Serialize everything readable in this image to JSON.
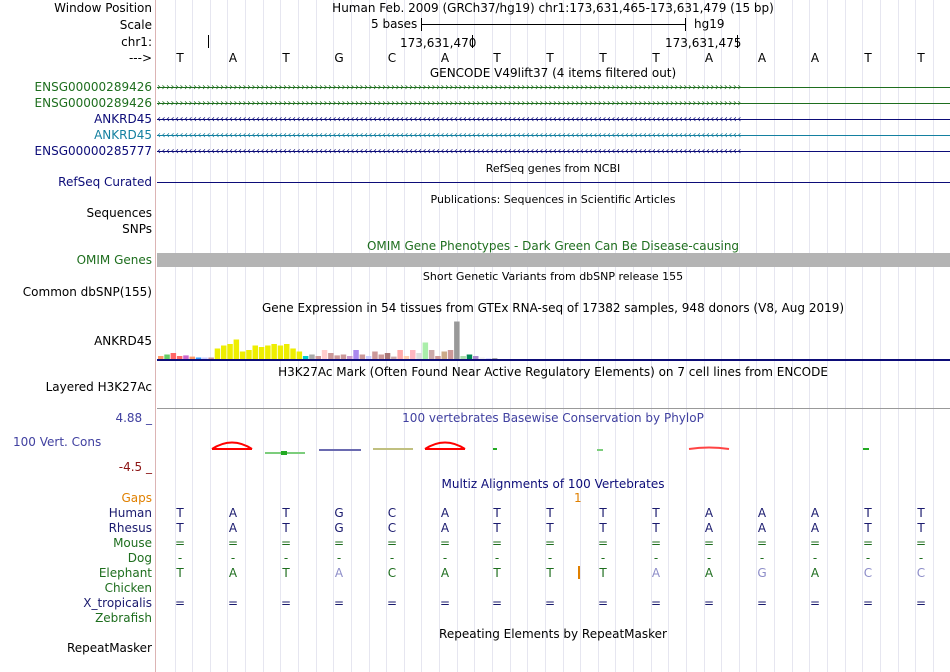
{
  "header": {
    "window_label": "Window Position",
    "window_text": "Human Feb. 2009 (GRCh37/hg19)   chr1:173,631,465-173,631,479 (15 bp)",
    "scale_label": "Scale",
    "scale_text": "5 bases",
    "assembly": "hg19",
    "chrom_label": "chr1:",
    "pos1": "173,631,470",
    "pos2": "173,631,475",
    "strand_label": "--->"
  },
  "sequence": [
    "T",
    "A",
    "T",
    "G",
    "C",
    "A",
    "T",
    "T",
    "T",
    "T",
    "A",
    "A",
    "A",
    "T",
    "T"
  ],
  "gencode": {
    "title": "GENCODE V49lift37 (4 items filtered out)",
    "tracks": [
      {
        "name": "ENSG00000289426",
        "color": "#1e6e1e",
        "arrow": "›"
      },
      {
        "name": "ENSG00000289426",
        "color": "#1e6e1e",
        "arrow": "›"
      },
      {
        "name": "ANKRD45",
        "color": "#0c0c78",
        "arrow": "‹"
      },
      {
        "name": "ANKRD45",
        "color": "#1480a0",
        "arrow": "‹"
      },
      {
        "name": "ENSG00000285777",
        "color": "#0c0c78",
        "arrow": "‹"
      }
    ]
  },
  "refseq": {
    "title": "RefSeq genes from NCBI",
    "label": "RefSeq Curated"
  },
  "publications": {
    "title": "Publications: Sequences in Scientific Articles",
    "label1": "Sequences",
    "label2": "SNPs"
  },
  "omim": {
    "title": "OMIM Gene Phenotypes - Dark Green Can Be Disease-causing",
    "label": "OMIM Genes"
  },
  "dbsnp": {
    "title": "Short Genetic Variants from dbSNP release 155",
    "label": "Common dbSNP(155)"
  },
  "gtex": {
    "title": "Gene Expression in 54 tissues from GTEx RNA-seq of 17382 samples, 948 donors (V8, Aug 2019)",
    "label": "ANKRD45",
    "values": [
      0.1,
      0.15,
      0.2,
      0.1,
      0.12,
      0.08,
      0.05,
      0.05,
      0.05,
      0.35,
      0.45,
      0.5,
      0.65,
      0.25,
      0.3,
      0.45,
      0.4,
      0.45,
      0.5,
      0.45,
      0.5,
      0.35,
      0.25,
      0.1,
      0.15,
      0.1,
      0.3,
      0.2,
      0.12,
      0.15,
      0.1,
      0.3,
      0.15,
      0.1,
      0.25,
      0.15,
      0.2,
      0.08,
      0.3,
      0.1,
      0.3,
      0.2,
      0.55,
      0.3,
      0.1,
      0.25,
      0.3,
      1.25,
      0.1,
      0.15,
      0.1,
      0.05,
      0.03,
      0.03
    ],
    "colors": [
      "#ff9966",
      "#66cc66",
      "#ff6666",
      "#ff6666",
      "#cc66cc",
      "#ff9966",
      "#3399ff",
      "#ccccff",
      "#cc9999",
      "#eeee00",
      "#eeee00",
      "#eeee00",
      "#eeee00",
      "#eeee00",
      "#eeee00",
      "#eeee00",
      "#eeee00",
      "#eeee00",
      "#eeee00",
      "#eeee00",
      "#eeee00",
      "#eeee00",
      "#eeee00",
      "#00cccc",
      "#aaaaaa",
      "#cc9999",
      "#ffcccc",
      "#cc9999",
      "#cc9999",
      "#cc9999",
      "#cc99cc",
      "#aa88ee",
      "#cc9999",
      "#ccccff",
      "#cc9999",
      "#cc9999",
      "#aa7777",
      "#ccaaaa",
      "#ffaaaa",
      "#ffccaa",
      "#ffb6c1",
      "#dddddd",
      "#aaeeaa",
      "#ccaaaa",
      "#cc9999",
      "#ccaa88",
      "#cc9999",
      "#999999",
      "#aaddaa",
      "#008855",
      "#aa88cc",
      "#eeeeee",
      "#ddddff",
      "#aaaaaa"
    ]
  },
  "h3k27ac": {
    "title": "H3K27Ac Mark (Often Found Near Active Regulatory Elements) on 7 cell lines from ENCODE",
    "label": "Layered H3K27Ac"
  },
  "phylop": {
    "title": "100 vertebrates Basewise Conservation by PhyloP",
    "label": "100 Vert. Cons",
    "max": "4.88 _",
    "min": "-4.5 _"
  },
  "multiz": {
    "title": "Multiz Alignments of 100 Vertebrates",
    "gaps_label": "Gaps",
    "gap_number": "1",
    "species": [
      {
        "name": "Human",
        "color": "#1a1a6e",
        "bases": [
          "T",
          "A",
          "T",
          "G",
          "C",
          "A",
          "T",
          "T",
          "T",
          "T",
          "A",
          "A",
          "A",
          "T",
          "T"
        ],
        "dim": []
      },
      {
        "name": "Rhesus",
        "color": "#1a1a6e",
        "bases": [
          "T",
          "A",
          "T",
          "G",
          "C",
          "A",
          "T",
          "T",
          "T",
          "T",
          "A",
          "A",
          "A",
          "T",
          "T"
        ],
        "dim": []
      },
      {
        "name": "Mouse",
        "color": "#1e6e1e",
        "bases": [
          "=",
          "=",
          "=",
          "=",
          "=",
          "=",
          "=",
          "=",
          "=",
          "=",
          "=",
          "=",
          "=",
          "=",
          "="
        ],
        "dim": []
      },
      {
        "name": "Dog",
        "color": "#1e6e1e",
        "bases": [
          "-",
          "-",
          "-",
          "-",
          "-",
          "-",
          "-",
          "-",
          "-",
          "-",
          "-",
          "-",
          "-",
          "-",
          "-"
        ],
        "dim": []
      },
      {
        "name": "Elephant",
        "color": "#1e6e1e",
        "bases": [
          "T",
          "A",
          "T",
          "A",
          "C",
          "A",
          "T",
          "T",
          "T",
          "A",
          "A",
          "G",
          "A",
          "C",
          "C"
        ],
        "dim": [
          3,
          9,
          11,
          13,
          14
        ]
      },
      {
        "name": "Chicken",
        "color": "#1e6e1e",
        "bases": [
          "",
          "",
          "",
          "",
          "",
          "",
          "",
          "",
          "",
          "",
          "",
          "",
          "",
          "",
          ""
        ],
        "dim": []
      },
      {
        "name": "X_tropicalis",
        "color": "#1a1a6e",
        "bases": [
          "=",
          "=",
          "=",
          "=",
          "=",
          "=",
          "=",
          "=",
          "=",
          "=",
          "=",
          "=",
          "=",
          "=",
          "="
        ],
        "dim": []
      },
      {
        "name": "Zebrafish",
        "color": "#1e6e1e",
        "bases": [
          "",
          "",
          "",
          "",
          "",
          "",
          "",
          "",
          "",
          "",
          "",
          "",
          "",
          "",
          ""
        ],
        "dim": []
      }
    ]
  },
  "repeatmasker": {
    "title": "Repeating Elements by RepeatMasker",
    "label": "RepeatMasker"
  },
  "colors": {
    "navy": "#0c0c78",
    "darkgreen": "#1e6e1e",
    "teal": "#1480a0",
    "orange": "#e08000",
    "phylop_label": "#4040a0",
    "phylop_min": "#8c1414",
    "conserved": "#ff0000",
    "separator": "#dcb4b4"
  }
}
